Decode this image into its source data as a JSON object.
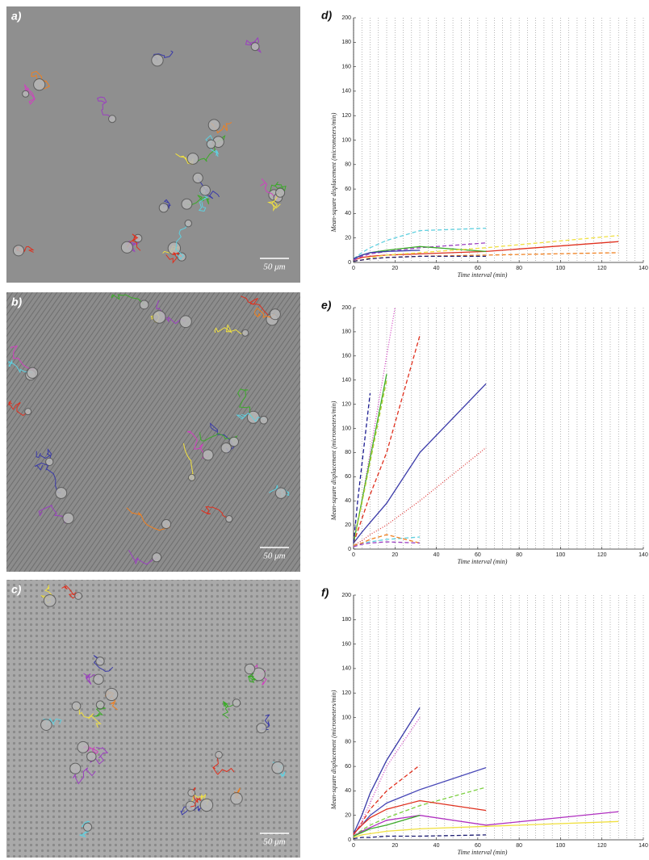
{
  "image_panels": [
    {
      "label": "a)",
      "scale_bar": "50 μm"
    },
    {
      "label": "b)",
      "scale_bar": "50 μm"
    },
    {
      "label": "c)",
      "scale_bar": "50 μm"
    }
  ],
  "chart_data": [
    {
      "type": "line",
      "panel_label": "d)",
      "xlabel": "Time interval (min)",
      "ylabel": "Mean-square displacement (micrometers/min)",
      "xlim": [
        0,
        140
      ],
      "ylim": [
        0,
        200
      ],
      "xticks": [
        0,
        20,
        40,
        60,
        80,
        100,
        120,
        140
      ],
      "yticks": [
        0,
        20,
        40,
        60,
        80,
        100,
        120,
        140,
        160,
        180,
        200
      ],
      "xgrid": [
        0,
        4,
        8,
        12,
        16,
        20,
        24,
        28,
        32,
        36,
        40,
        44,
        48,
        52,
        56,
        60,
        64,
        68,
        72,
        76,
        80,
        84,
        88,
        92,
        96,
        100,
        104,
        108,
        112,
        116,
        120,
        124,
        128,
        132,
        136,
        140
      ],
      "series": [
        {
          "color": "#e0301e",
          "dash": "solid",
          "x": [
            0,
            4,
            8,
            16,
            32,
            64,
            128
          ],
          "values": [
            2,
            4,
            5,
            6,
            7,
            9,
            17
          ]
        },
        {
          "color": "#5fd0e0",
          "dash": "dashed",
          "x": [
            0,
            4,
            8,
            16,
            32,
            64
          ],
          "values": [
            3,
            8,
            12,
            18,
            26,
            28
          ]
        },
        {
          "color": "#9b3fc0",
          "dash": "dashed",
          "x": [
            0,
            4,
            8,
            16,
            32,
            64
          ],
          "values": [
            2,
            5,
            7,
            9,
            12,
            16
          ]
        },
        {
          "color": "#3caa2a",
          "dash": "solid",
          "x": [
            0,
            4,
            8,
            16,
            32,
            64
          ],
          "values": [
            3,
            6,
            8,
            10,
            13,
            9
          ]
        },
        {
          "color": "#3a3aa8",
          "dash": "solid",
          "x": [
            0,
            4,
            8,
            16,
            32
          ],
          "values": [
            3,
            6,
            8,
            9,
            10
          ]
        },
        {
          "color": "#f0e040",
          "dash": "dashed",
          "x": [
            0,
            4,
            8,
            16,
            32,
            64,
            128
          ],
          "values": [
            1,
            2,
            4,
            6,
            8,
            12,
            22
          ]
        },
        {
          "color": "#f08020",
          "dash": "dashed",
          "x": [
            0,
            4,
            8,
            16,
            32,
            64,
            128
          ],
          "values": [
            1,
            2,
            3,
            4,
            5,
            6,
            8
          ]
        },
        {
          "color": "#1a1a70",
          "dash": "dashed",
          "x": [
            0,
            4,
            8,
            16,
            32,
            64
          ],
          "values": [
            1,
            2,
            3,
            4,
            5,
            5
          ]
        }
      ]
    },
    {
      "type": "line",
      "panel_label": "e)",
      "xlabel": "Time interval (min)",
      "ylabel": "Mean-square displacement (micrometers/min)",
      "xlim": [
        0,
        140
      ],
      "ylim": [
        0,
        200
      ],
      "xticks": [
        0,
        20,
        40,
        60,
        80,
        100,
        120,
        140
      ],
      "yticks": [
        0,
        20,
        40,
        60,
        80,
        100,
        120,
        140,
        160,
        180,
        200
      ],
      "xgrid": [
        0,
        4,
        8,
        12,
        16,
        20,
        24,
        28,
        32,
        36,
        40,
        44,
        48,
        52,
        56,
        60,
        64,
        68,
        72,
        76,
        80,
        84,
        88,
        92,
        96,
        100,
        104,
        108,
        112,
        116,
        120,
        124,
        128,
        132,
        136,
        140
      ],
      "series": [
        {
          "color": "#3a3aa8",
          "dash": "solid",
          "x": [
            0,
            4,
            8,
            16,
            32,
            64
          ],
          "values": [
            5,
            14,
            22,
            38,
            80,
            137
          ]
        },
        {
          "color": "#e0301e",
          "dash": "dashed",
          "x": [
            0,
            4,
            8,
            16,
            32
          ],
          "values": [
            5,
            25,
            45,
            80,
            177
          ]
        },
        {
          "color": "#e04040",
          "dash": "dotted",
          "x": [
            0,
            4,
            8,
            16,
            32,
            64
          ],
          "values": [
            3,
            7,
            12,
            20,
            40,
            84
          ]
        },
        {
          "color": "#d040c0",
          "dash": "dotted",
          "x": [
            0,
            4,
            8,
            16,
            20
          ],
          "values": [
            5,
            40,
            80,
            160,
            200
          ]
        },
        {
          "color": "#3caa2a",
          "dash": "solid",
          "x": [
            0,
            4,
            8,
            16
          ],
          "values": [
            5,
            40,
            75,
            145
          ]
        },
        {
          "color": "#b0d030",
          "dash": "dashed",
          "x": [
            0,
            4,
            8,
            16
          ],
          "values": [
            5,
            38,
            72,
            140
          ]
        },
        {
          "color": "#1a1a90",
          "dash": "dashed",
          "x": [
            0,
            2,
            4,
            8
          ],
          "values": [
            5,
            40,
            70,
            129
          ]
        },
        {
          "color": "#5fd0e0",
          "dash": "dashed",
          "x": [
            0,
            4,
            8,
            16,
            32
          ],
          "values": [
            3,
            5,
            6,
            8,
            10
          ]
        },
        {
          "color": "#f08020",
          "dash": "dashed",
          "x": [
            0,
            4,
            8,
            16,
            32
          ],
          "values": [
            3,
            5,
            8,
            12,
            5
          ]
        },
        {
          "color": "#9b3fc0",
          "dash": "dashed",
          "x": [
            0,
            4,
            8,
            16,
            32
          ],
          "values": [
            2,
            4,
            5,
            6,
            5
          ]
        }
      ]
    },
    {
      "type": "line",
      "panel_label": "f)",
      "xlabel": "Time interval (min)",
      "ylabel": "Mean-square displacement (micrometers/min)",
      "xlim": [
        0,
        140
      ],
      "ylim": [
        0,
        200
      ],
      "xticks": [
        0,
        20,
        40,
        60,
        80,
        100,
        120,
        140
      ],
      "yticks": [
        0,
        20,
        40,
        60,
        80,
        100,
        120,
        140,
        160,
        180,
        200
      ],
      "xgrid": [
        0,
        4,
        8,
        12,
        16,
        20,
        24,
        28,
        32,
        36,
        40,
        44,
        48,
        52,
        56,
        60,
        64,
        68,
        72,
        76,
        80,
        84,
        88,
        92,
        96,
        100,
        104,
        108,
        112,
        116,
        120,
        124,
        128,
        132,
        136,
        140
      ],
      "series": [
        {
          "color": "#3a3aa8",
          "dash": "solid",
          "x": [
            0,
            4,
            8,
            16,
            32
          ],
          "values": [
            5,
            20,
            38,
            65,
            108
          ]
        },
        {
          "color": "#e0301e",
          "dash": "dashed",
          "x": [
            0,
            4,
            8,
            16,
            32
          ],
          "values": [
            4,
            14,
            25,
            40,
            61
          ]
        },
        {
          "color": "#d040c0",
          "dash": "dotted",
          "x": [
            0,
            4,
            8,
            16,
            32
          ],
          "values": [
            3,
            15,
            30,
            60,
            100
          ]
        },
        {
          "color": "#4a4ab8",
          "dash": "solid",
          "x": [
            0,
            4,
            8,
            16,
            32,
            64
          ],
          "values": [
            5,
            12,
            20,
            30,
            41,
            59
          ]
        },
        {
          "color": "#7cd040",
          "dash": "dashed",
          "x": [
            0,
            4,
            8,
            16,
            32,
            64
          ],
          "values": [
            3,
            8,
            12,
            18,
            28,
            43
          ]
        },
        {
          "color": "#e0301e",
          "dash": "solid",
          "x": [
            0,
            4,
            8,
            16,
            32,
            64
          ],
          "values": [
            5,
            12,
            18,
            25,
            32,
            24
          ]
        },
        {
          "color": "#b030c0",
          "dash": "solid",
          "x": [
            0,
            4,
            8,
            16,
            32,
            64,
            128
          ],
          "values": [
            3,
            7,
            10,
            16,
            20,
            12,
            23
          ]
        },
        {
          "color": "#f0e040",
          "dash": "solid",
          "x": [
            0,
            4,
            8,
            16,
            32,
            64,
            128
          ],
          "values": [
            2,
            4,
            5,
            7,
            9,
            11,
            15
          ]
        },
        {
          "color": "#1a1a70",
          "dash": "dashed",
          "x": [
            0,
            4,
            8,
            16,
            32,
            64
          ],
          "values": [
            1,
            2,
            2,
            3,
            3,
            4
          ]
        },
        {
          "color": "#3caa2a",
          "dash": "solid",
          "x": [
            0,
            4,
            8,
            16,
            32
          ],
          "values": [
            3,
            6,
            9,
            12,
            20
          ]
        }
      ]
    }
  ]
}
